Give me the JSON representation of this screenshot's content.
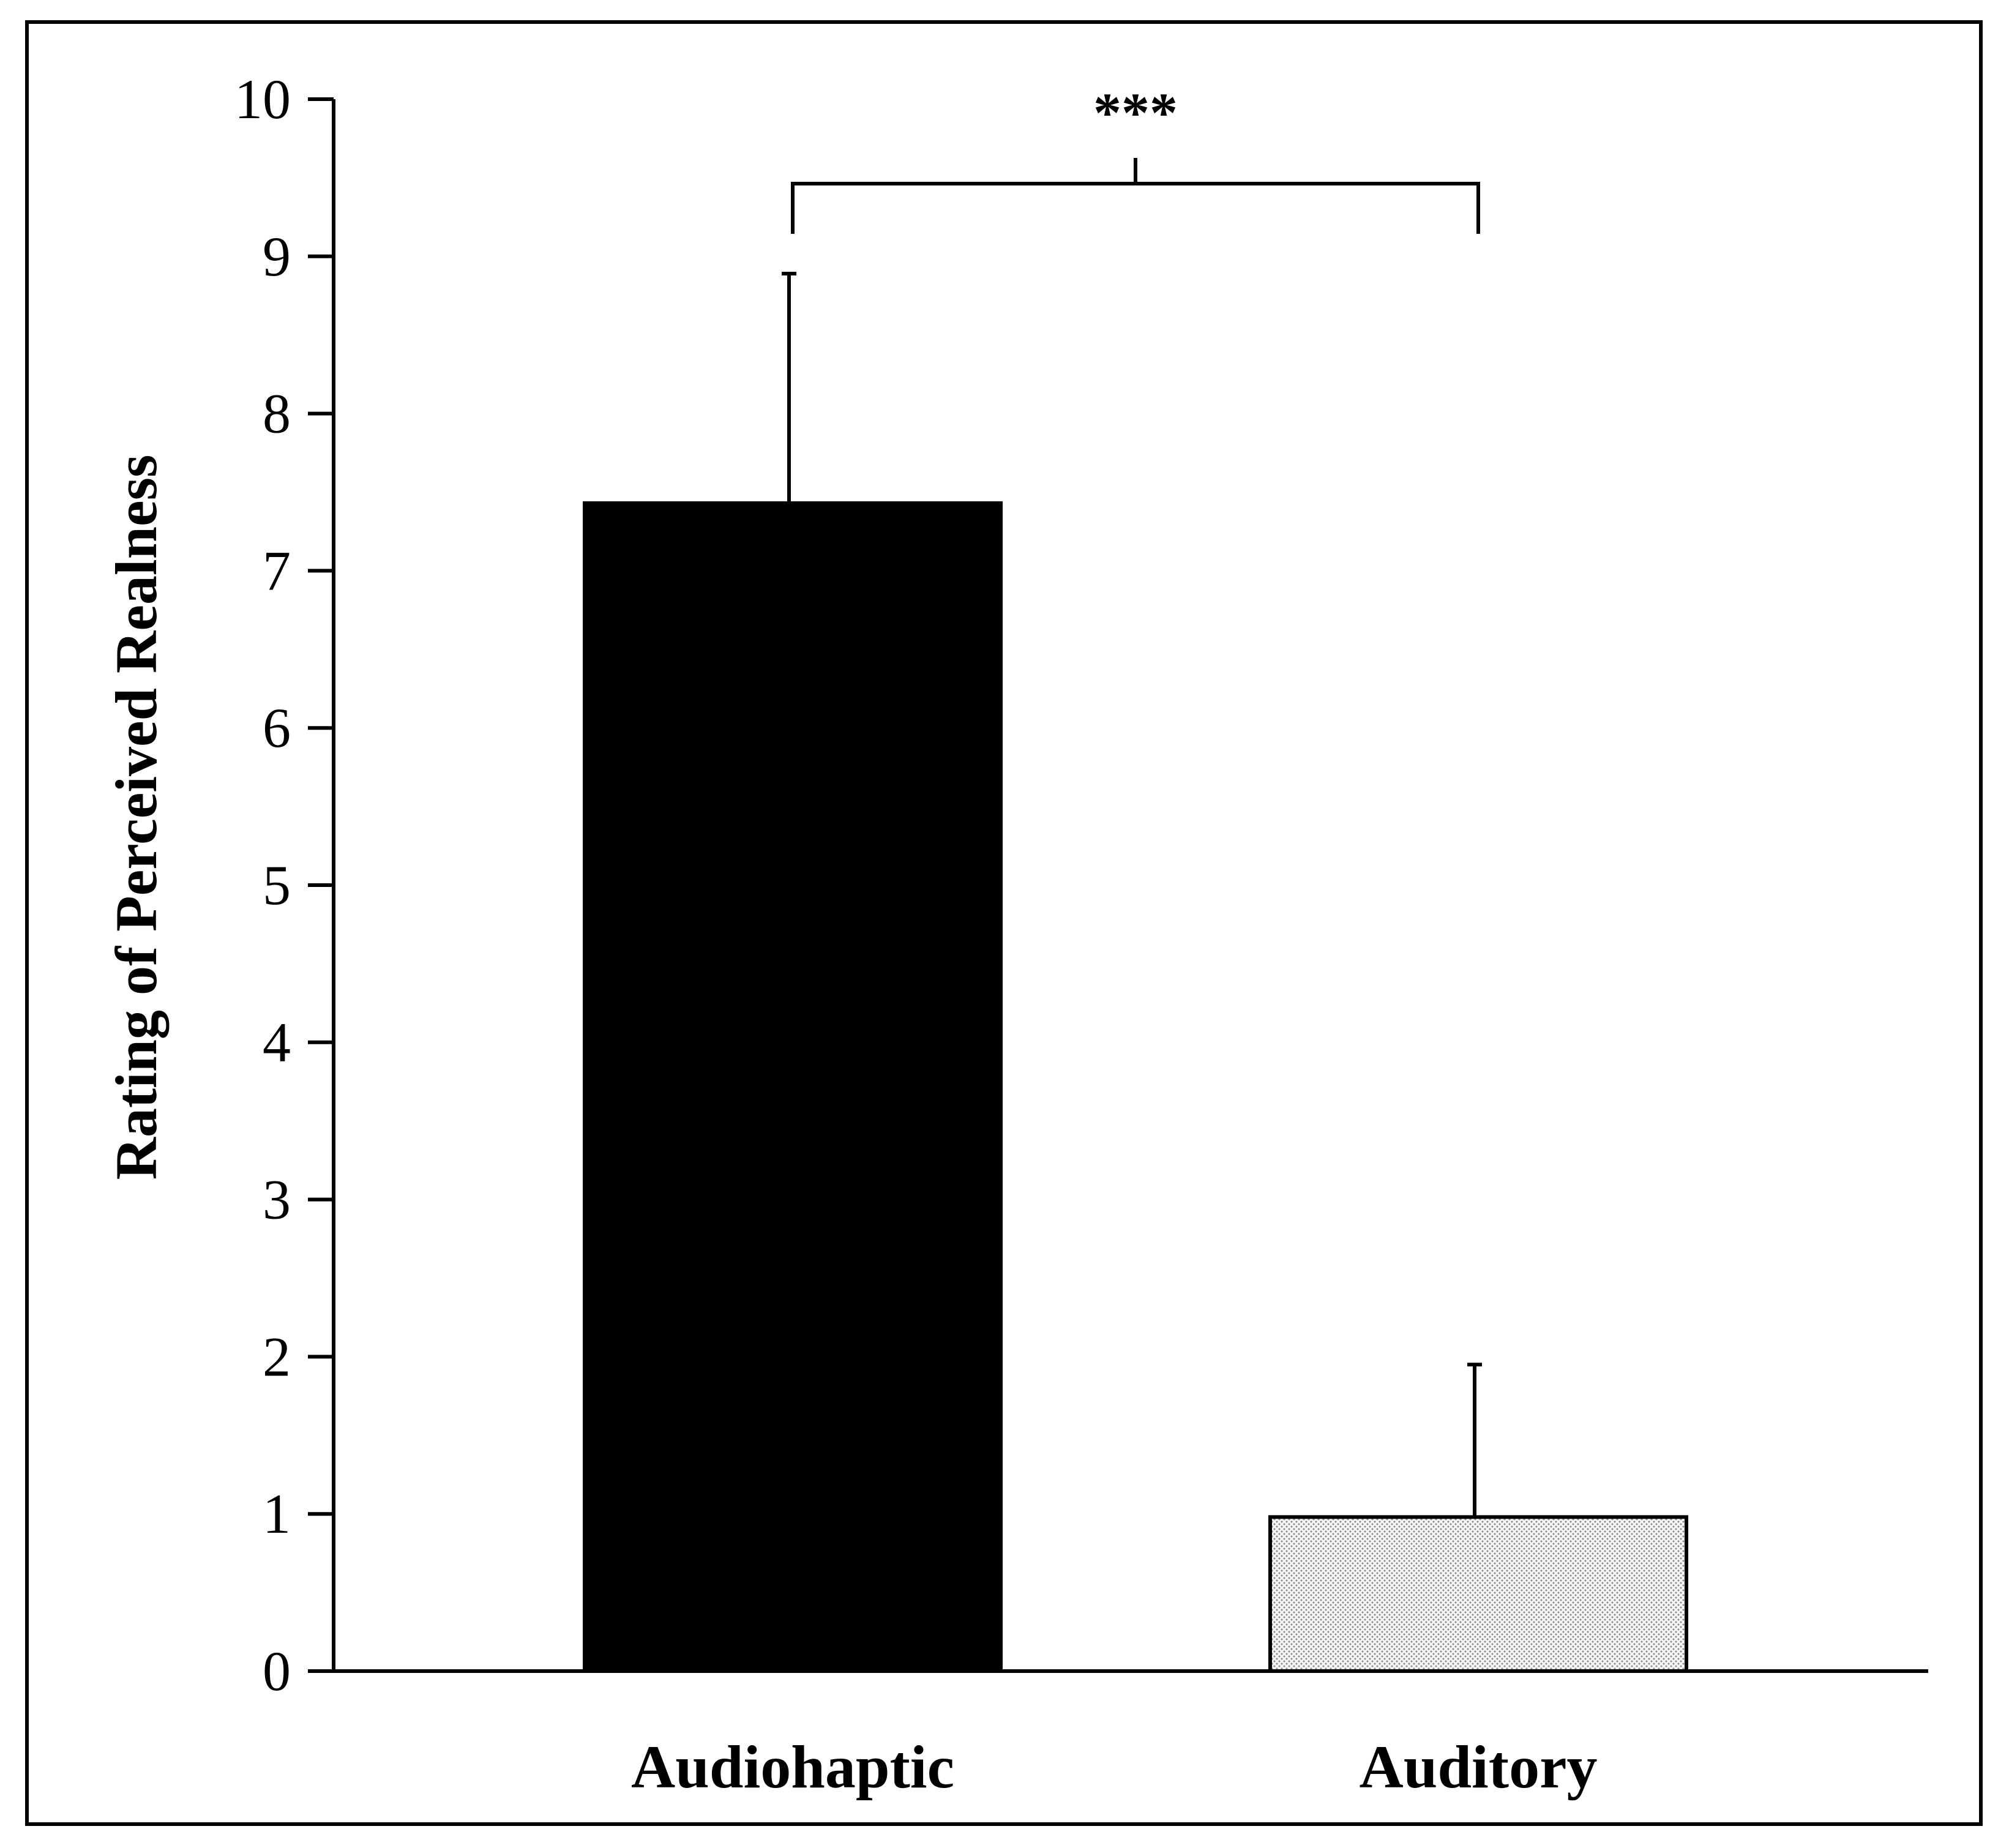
{
  "chart_data": {
    "type": "bar",
    "title": "",
    "xlabel": "",
    "ylabel": "Rating of  Perceived Realness",
    "ylim": [
      0,
      10
    ],
    "yticks": [
      "0",
      "1",
      "2",
      "3",
      "4",
      "5",
      "6",
      "7",
      "8",
      "9",
      "10"
    ],
    "categories": [
      "Audiohaptic",
      "Auditory"
    ],
    "values": [
      7.43,
      0.98
    ],
    "error_upper": [
      1.46,
      0.97
    ],
    "bar_styles": [
      "solid",
      "dotted"
    ],
    "colors": {
      "solid": "#000000",
      "dotted_background": "#f4f4f4",
      "dotted_dots": "#8a8a8a",
      "axis": "#000000",
      "frame": "#000000"
    },
    "significance": {
      "label": "***",
      "between": [
        "Audiohaptic",
        "Auditory"
      ]
    },
    "grid": false,
    "legend": "none"
  }
}
